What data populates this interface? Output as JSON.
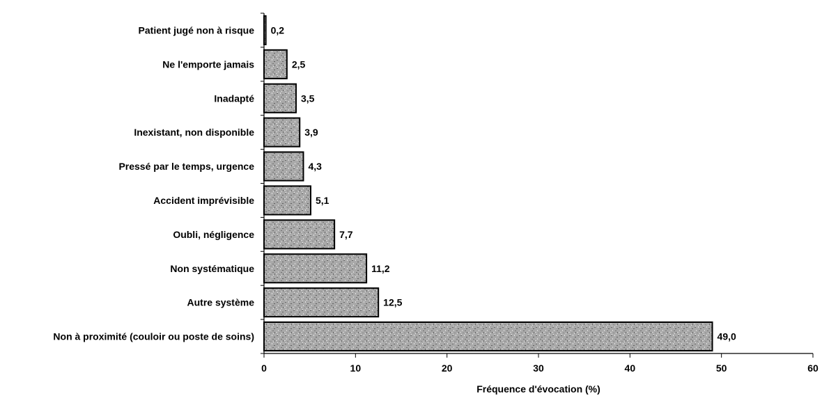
{
  "chart_data": {
    "type": "bar",
    "orientation": "horizontal",
    "categories": [
      "Patient jugé non à risque",
      "Ne l'emporte jamais",
      "Inadapté",
      "Inexistant, non disponible",
      "Pressé par le temps, urgence",
      "Accident imprévisible",
      "Oubli, négligence",
      "Non systématique",
      "Autre système",
      "Non à proximité (couloir ou poste de soins)"
    ],
    "values": [
      0.2,
      2.5,
      3.5,
      3.9,
      4.3,
      5.1,
      7.7,
      11.2,
      12.5,
      49.0
    ],
    "value_labels": [
      "0,2",
      "2,5",
      "3,5",
      "3,9",
      "4,3",
      "5,1",
      "7,7",
      "11,2",
      "12,5",
      "49,0"
    ],
    "xlabel": "Fréquence d'évocation (%)",
    "ylabel": "",
    "xlim": [
      0,
      60
    ],
    "xticks": [
      0,
      10,
      20,
      30,
      40,
      50,
      60
    ],
    "grid": false,
    "legend": "none",
    "bar_fill_color": "#a8a8a8",
    "bar_stroke_color": "#000000"
  }
}
